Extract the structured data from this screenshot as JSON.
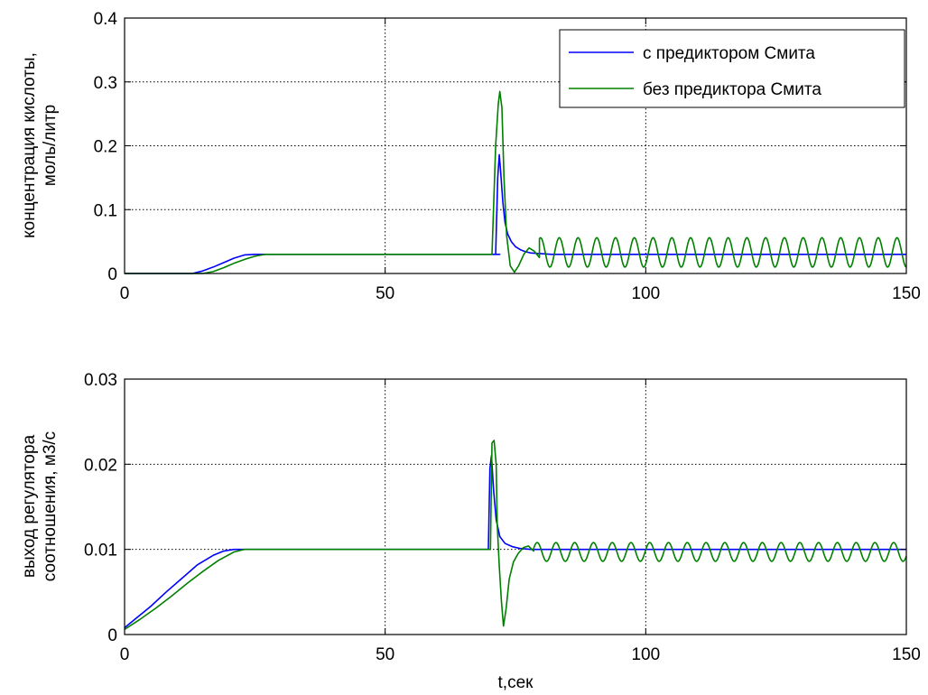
{
  "figure": {
    "background": "#ffffff"
  },
  "chart_data": [
    {
      "type": "line",
      "xlabel": "",
      "ylabel_lines": [
        "концентрация кислоты,",
        "моль/литр"
      ],
      "xlim": [
        0,
        150
      ],
      "ylim": [
        0,
        0.4
      ],
      "xticks": [
        0,
        50,
        100,
        150
      ],
      "yticks": [
        0,
        0.1,
        0.2,
        0.3,
        0.4
      ],
      "ytick_labels": [
        "0",
        "0.1",
        "0.2",
        "0.3",
        "0.4"
      ],
      "grid": true,
      "legend": {
        "position": "top-right"
      },
      "series": [
        {
          "name": "с предиктором Смита",
          "color": "#0000ff",
          "segments": [
            {
              "kind": "points",
              "pts": [
                [
                  0,
                  0
                ],
                [
                  13,
                  0
                ],
                [
                  15,
                  0.004
                ],
                [
                  17,
                  0.01
                ],
                [
                  19,
                  0.017
                ],
                [
                  21,
                  0.024
                ],
                [
                  23,
                  0.029
                ],
                [
                  25,
                  0.03
                ],
                [
                  72,
                  0.03
                ]
              ]
            },
            {
              "kind": "points",
              "pts": [
                [
                  71.2,
                  0.03
                ],
                [
                  71.6,
                  0.15
                ],
                [
                  71.9,
                  0.186
                ],
                [
                  72.2,
                  0.155
                ],
                [
                  72.6,
                  0.11
                ],
                [
                  73.0,
                  0.08
                ],
                [
                  73.5,
                  0.062
                ],
                [
                  74.2,
                  0.05
                ],
                [
                  75,
                  0.042
                ],
                [
                  76,
                  0.037
                ],
                [
                  77,
                  0.034
                ],
                [
                  78,
                  0.032
                ],
                [
                  80,
                  0.031
                ],
                [
                  82,
                  0.03
                ],
                [
                  150,
                  0.03
                ]
              ]
            }
          ]
        },
        {
          "name": "без предиктора Смита",
          "color": "#008000",
          "segments": [
            {
              "kind": "points",
              "pts": [
                [
                  0,
                  0
                ],
                [
                  15,
                  0
                ],
                [
                  17,
                  0.003
                ],
                [
                  19,
                  0.009
                ],
                [
                  21,
                  0.016
                ],
                [
                  23,
                  0.022
                ],
                [
                  25,
                  0.027
                ],
                [
                  27,
                  0.03
                ],
                [
                  70.5,
                  0.03
                ]
              ]
            },
            {
              "kind": "points",
              "pts": [
                [
                  70.5,
                  0.03
                ],
                [
                  71.2,
                  0.2
                ],
                [
                  71.7,
                  0.265
                ],
                [
                  72.0,
                  0.285
                ],
                [
                  72.4,
                  0.26
                ],
                [
                  72.8,
                  0.15
                ],
                [
                  73.3,
                  0.06
                ],
                [
                  74.0,
                  0.012
                ],
                [
                  74.8,
                  0.002
                ],
                [
                  75.6,
                  0.012
                ],
                [
                  76.6,
                  0.03
                ],
                [
                  77.6,
                  0.04
                ],
                [
                  78.6,
                  0.035
                ],
                [
                  79.6,
                  0.025
                ]
              ]
            },
            {
              "kind": "sine",
              "start": 79.6,
              "end": 150,
              "period": 3.6,
              "center": 0.033,
              "amplitude": 0.023,
              "phase": 1.2
            }
          ]
        }
      ]
    },
    {
      "type": "line",
      "xlabel": "t,сек",
      "ylabel_lines": [
        "выход регулятора",
        "соотношения, м3/с"
      ],
      "xlim": [
        0,
        150
      ],
      "ylim": [
        0,
        0.03
      ],
      "xticks": [
        0,
        50,
        100,
        150
      ],
      "yticks": [
        0,
        0.01,
        0.02,
        0.03
      ],
      "ytick_labels": [
        "0",
        "0.01",
        "0.02",
        "0.03"
      ],
      "grid": true,
      "series": [
        {
          "name": "с предиктором Смита",
          "color": "#0000ff",
          "segments": [
            {
              "kind": "points",
              "pts": [
                [
                  0,
                  0.0008
                ],
                [
                  2,
                  0.0018
                ],
                [
                  5,
                  0.0033
                ],
                [
                  8,
                  0.005
                ],
                [
                  11,
                  0.0066
                ],
                [
                  14,
                  0.0082
                ],
                [
                  17,
                  0.0093
                ],
                [
                  19,
                  0.0098
                ],
                [
                  21,
                  0.01
                ],
                [
                  69.8,
                  0.01
                ]
              ]
            },
            {
              "kind": "points",
              "pts": [
                [
                  69.8,
                  0.01
                ],
                [
                  70.1,
                  0.0195
                ],
                [
                  70.4,
                  0.021
                ],
                [
                  70.8,
                  0.017
                ],
                [
                  71.3,
                  0.0135
                ],
                [
                  72,
                  0.0115
                ],
                [
                  73,
                  0.0107
                ],
                [
                  74.5,
                  0.0103
                ],
                [
                  76,
                  0.0101
                ],
                [
                  78,
                  0.01
                ],
                [
                  150,
                  0.01
                ]
              ]
            }
          ]
        },
        {
          "name": "без предиктора Смита",
          "color": "#008000",
          "segments": [
            {
              "kind": "points",
              "pts": [
                [
                  0,
                  0.0006
                ],
                [
                  3,
                  0.0018
                ],
                [
                  6,
                  0.0031
                ],
                [
                  9,
                  0.0045
                ],
                [
                  12,
                  0.006
                ],
                [
                  15,
                  0.0074
                ],
                [
                  18,
                  0.0087
                ],
                [
                  21,
                  0.0097
                ],
                [
                  23,
                  0.01
                ],
                [
                  70.2,
                  0.01
                ]
              ]
            },
            {
              "kind": "points",
              "pts": [
                [
                  70.2,
                  0.01
                ],
                [
                  70.5,
                  0.0225
                ],
                [
                  70.9,
                  0.0228
                ],
                [
                  71.3,
                  0.02
                ],
                [
                  71.5,
                  0.013
                ],
                [
                  71.9,
                  0.008
                ],
                [
                  72.3,
                  0.004
                ],
                [
                  72.7,
                  0.001
                ],
                [
                  73.2,
                  0.003
                ],
                [
                  73.8,
                  0.0065
                ],
                [
                  74.6,
                  0.0085
                ],
                [
                  75.5,
                  0.0095
                ],
                [
                  76.5,
                  0.0102
                ],
                [
                  77.5,
                  0.0104
                ],
                [
                  78.5,
                  0.0098
                ]
              ]
            },
            {
              "kind": "sine",
              "start": 78.5,
              "end": 150,
              "period": 3.6,
              "center": 0.0097,
              "amplitude": 0.0011,
              "phase": 0.4
            }
          ]
        }
      ]
    }
  ]
}
